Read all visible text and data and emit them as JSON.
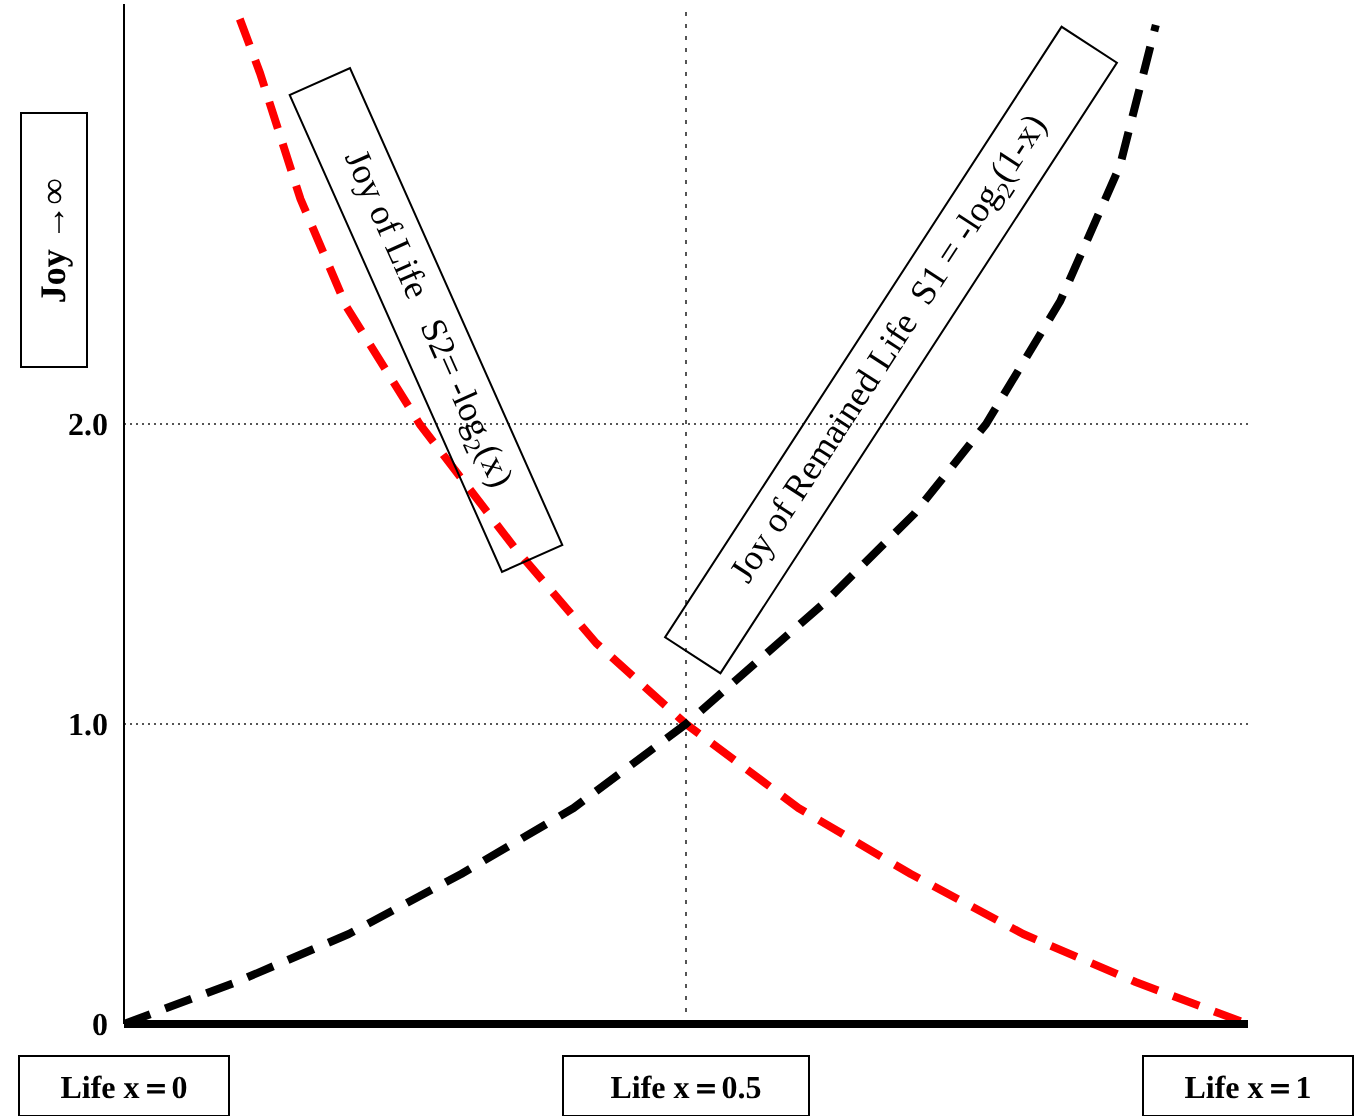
{
  "chart_data": {
    "type": "line",
    "ylabel": "Joy →∞",
    "annotations": [
      "Joy of Life   S2= -log$_{2}$(x)",
      "Joy of Remained Life  S1 = -log$_{2}$(1-x)"
    ],
    "series": [
      {
        "color": "#ff0000",
        "x": [
          0.103,
          0.121,
          0.157,
          0.198,
          0.263,
          0.347,
          0.42,
          0.5,
          0.6,
          0.7,
          0.8,
          0.9,
          1
        ],
        "values": [
          3.35,
          3.17,
          2.75,
          2.39,
          2.0,
          1.59,
          1.27,
          1.0,
          0.72,
          0.5,
          0.3,
          0.14,
          0
        ]
      },
      {
        "color": "#000000",
        "x": [
          0,
          0.1,
          0.2,
          0.3,
          0.4,
          0.5,
          0.625,
          0.703,
          0.767,
          0.833,
          0.886,
          0.918
        ],
        "values": [
          0,
          0.14,
          0.3,
          0.5,
          0.72,
          1.0,
          1.41,
          1.7,
          2.0,
          2.41,
          2.86,
          3.33
        ]
      }
    ],
    "xlim": [
      0,
      1
    ],
    "xticks": [
      {
        "value": 0,
        "label": "Life  x＝0"
      },
      {
        "value": 0.5,
        "label": "Life  x＝0.5"
      },
      {
        "value": 1,
        "label": "Life  x＝1"
      }
    ],
    "ylim": [
      0,
      3.4
    ],
    "yticks": [
      0,
      {
        "value": 1,
        "label": "1.0"
      },
      {
        "value": 2,
        "label": "2.0"
      }
    ],
    "ref_lines": [
      {
        "axis": "x",
        "value": 0.5,
        "line_style": "dotted"
      }
    ],
    "grid": "y",
    "line_style": "dashed",
    "marker": "none"
  }
}
